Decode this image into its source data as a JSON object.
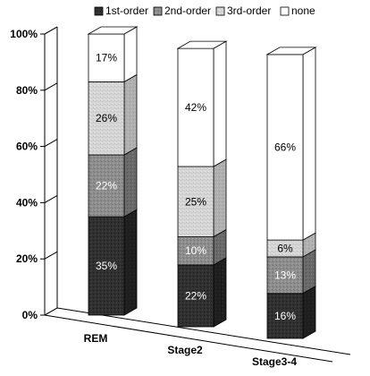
{
  "chart_data": {
    "type": "bar",
    "stacked": true,
    "three_d": true,
    "categories": [
      "REM",
      "Stage2",
      "Stage3-4"
    ],
    "series": [
      {
        "name": "1st-order",
        "values": [
          35,
          22,
          16
        ],
        "color": "#2b2b2b",
        "pattern": "noise-dark"
      },
      {
        "name": "2nd-order",
        "values": [
          22,
          10,
          13
        ],
        "color": "#8a8a8a",
        "pattern": "noise-mid"
      },
      {
        "name": "3rd-order",
        "values": [
          26,
          25,
          6
        ],
        "color": "#d2d2d2",
        "pattern": "noise-light"
      },
      {
        "name": "none",
        "values": [
          17,
          42,
          66
        ],
        "color": "#ffffff",
        "pattern": "none"
      }
    ],
    "data_labels": [
      [
        "35%",
        "22%",
        "16%"
      ],
      [
        "22%",
        "10%",
        "13%"
      ],
      [
        "26%",
        "25%",
        "6%"
      ],
      [
        "17%",
        "42%",
        "66%"
      ]
    ],
    "y_ticks": [
      "0%",
      "20%",
      "40%",
      "60%",
      "80%",
      "100%"
    ],
    "ylim": [
      0,
      100
    ],
    "title": "",
    "xlabel": "",
    "ylabel": "",
    "legend": {
      "placement": "top"
    },
    "grid": false
  }
}
